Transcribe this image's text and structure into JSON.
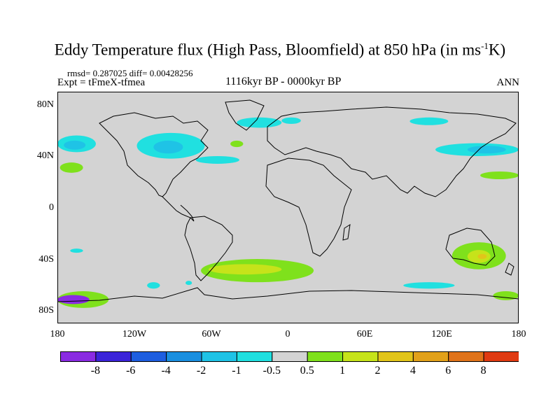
{
  "title": "Eddy Temperature flux (High Pass, Bloomfield) at 850 hPa (in ms",
  "title_sup": "-1",
  "title_tail": "K)",
  "stats": "rmsd= 0.287025 diff= 0.00428256",
  "experiment": "Expt = tFmeX-tfmea",
  "period": "1116kyr BP - 0000kyr BP",
  "season": "ANN",
  "map": {
    "projection": "cylindrical-equidistant",
    "background_color": "#d3d3d3",
    "lat_ticks": [
      "80N",
      "40N",
      "0",
      "40S",
      "80S"
    ],
    "lon_ticks": [
      "180",
      "120W",
      "60W",
      "0",
      "60E",
      "120E",
      "180"
    ],
    "anomaly_regions": [
      {
        "name": "north-pacific-west",
        "lon": [
          -180,
          -150
        ],
        "lat": [
          43,
          56
        ],
        "level": -1
      },
      {
        "name": "north-pacific-west-core",
        "lon": [
          -175,
          -158
        ],
        "lat": [
          45,
          52
        ],
        "level": -2
      },
      {
        "name": "north-america-east",
        "lon": [
          -118,
          -65
        ],
        "lat": [
          38,
          58
        ],
        "level": -1
      },
      {
        "name": "north-america-east-core",
        "lon": [
          -105,
          -82
        ],
        "lat": [
          42,
          52
        ],
        "level": -2
      },
      {
        "name": "north-atlantic",
        "lon": [
          -72,
          -38
        ],
        "lat": [
          34,
          40
        ],
        "level": -1
      },
      {
        "name": "arctic-greenland",
        "lon": [
          -40,
          -5
        ],
        "lat": [
          62,
          70
        ],
        "level": -1
      },
      {
        "name": "arctic-barents",
        "lon": [
          -5,
          10
        ],
        "lat": [
          65,
          70
        ],
        "level": -1
      },
      {
        "name": "arctic-siberia",
        "lon": [
          95,
          125
        ],
        "lat": [
          64,
          70
        ],
        "level": -1
      },
      {
        "name": "north-pacific-east",
        "lon": [
          115,
          180
        ],
        "lat": [
          40,
          50
        ],
        "level": -1
      },
      {
        "name": "north-pacific-east-core",
        "lon": [
          140,
          170
        ],
        "lat": [
          42,
          48
        ],
        "level": -2
      },
      {
        "name": "pacific-subtropic-positive",
        "lon": [
          -178,
          -160
        ],
        "lat": [
          27,
          35
        ],
        "level": 1
      },
      {
        "name": "atlantic-mid-positive",
        "lon": [
          -45,
          -35
        ],
        "lat": [
          47,
          52
        ],
        "level": 1
      },
      {
        "name": "pacific-west-positive",
        "lon": [
          150,
          180
        ],
        "lat": [
          22,
          28
        ],
        "level": 1
      },
      {
        "name": "southern-ocean-atlantic",
        "lon": [
          -68,
          20
        ],
        "lat": [
          -58,
          -40
        ],
        "level": 1
      },
      {
        "name": "southern-ocean-atlantic-core",
        "lon": [
          -62,
          -5
        ],
        "lat": [
          -52,
          -44
        ],
        "level": 2
      },
      {
        "name": "australia-south",
        "lon": [
          128,
          170
        ],
        "lat": [
          -48,
          -27
        ],
        "level": 1
      },
      {
        "name": "australia-south-core",
        "lon": [
          140,
          158
        ],
        "lat": [
          -43,
          -33
        ],
        "level": 2
      },
      {
        "name": "australia-south-peak",
        "lon": [
          148,
          155
        ],
        "lat": [
          -40,
          -36
        ],
        "level": 4
      },
      {
        "name": "ross-sea",
        "lon": [
          -180,
          -140
        ],
        "lat": [
          -78,
          -65
        ],
        "level": 1
      },
      {
        "name": "ross-sea-core",
        "lon": [
          -180,
          -155
        ],
        "lat": [
          -75,
          -68
        ],
        "level": -8
      },
      {
        "name": "ross-sea-east",
        "lon": [
          -80,
          -75
        ],
        "lat": [
          -60,
          -57
        ],
        "level": -1
      },
      {
        "name": "south-pacific-small",
        "lon": [
          -110,
          -100
        ],
        "lat": [
          -63,
          -58
        ],
        "level": -1
      },
      {
        "name": "south-pacific-mid",
        "lon": [
          -170,
          -160
        ],
        "lat": [
          -35,
          -32
        ],
        "level": -1
      },
      {
        "name": "southern-ocean-indian",
        "lon": [
          90,
          130
        ],
        "lat": [
          -63,
          -58
        ],
        "level": -1
      },
      {
        "name": "antarctic-pacific-positive",
        "lon": [
          160,
          180
        ],
        "lat": [
          -72,
          -65
        ],
        "level": 1
      }
    ]
  },
  "colorbar": {
    "labels": [
      "-8",
      "-6",
      "-4",
      "-2",
      "-1",
      "-0.5",
      "0.5",
      "1",
      "2",
      "4",
      "6",
      "8"
    ],
    "levels": [
      "<-8",
      "-8..-6",
      "-6..-4",
      "-4..-2",
      "-2..-1",
      "-1..-0.5",
      "-0.5..0.5",
      "0.5..1",
      "1..2",
      "2..4",
      "4..6",
      "6..8",
      ">8"
    ],
    "colors": [
      "#8a2be2",
      "#3b24d9",
      "#1e5ee0",
      "#1a8fe0",
      "#1fc3e6",
      "#20e0e0",
      "#d3d3d3",
      "#7fe11c",
      "#c6e31a",
      "#e2c51a",
      "#e2a11a",
      "#e0731a",
      "#e03a12"
    ]
  },
  "level_colors": {
    "-8": "#8a2be2",
    "-2": "#1fc3e6",
    "-1": "#20e0e0",
    "1": "#7fe11c",
    "2": "#c6e31a",
    "4": "#e2c51a"
  }
}
